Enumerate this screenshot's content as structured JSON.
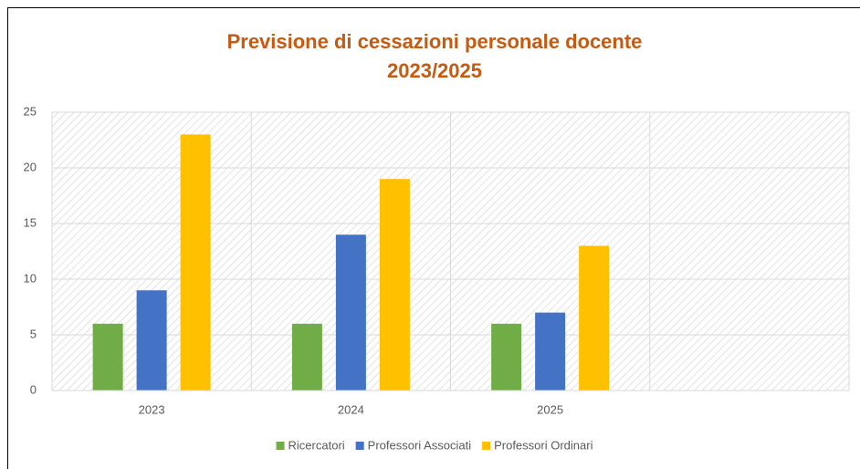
{
  "chart_data": {
    "type": "bar",
    "title": "Previsione di cessazioni personale docente",
    "subtitle": "2023/2025",
    "categories": [
      "2023",
      "2024",
      "2025",
      null
    ],
    "series": [
      {
        "name": "Ricercatori",
        "color": "#70ad47",
        "values": [
          6,
          6,
          6,
          null
        ]
      },
      {
        "name": "Professori Associati",
        "color": "#4472c4",
        "values": [
          9,
          14,
          7,
          null
        ]
      },
      {
        "name": "Professori Ordinari",
        "color": "#ffc000",
        "values": [
          23,
          19,
          13,
          null
        ]
      }
    ],
    "ylim": [
      0,
      25
    ],
    "yticks": [
      0,
      5,
      10,
      15,
      20,
      25
    ],
    "grid": true,
    "legend": "bottom"
  }
}
